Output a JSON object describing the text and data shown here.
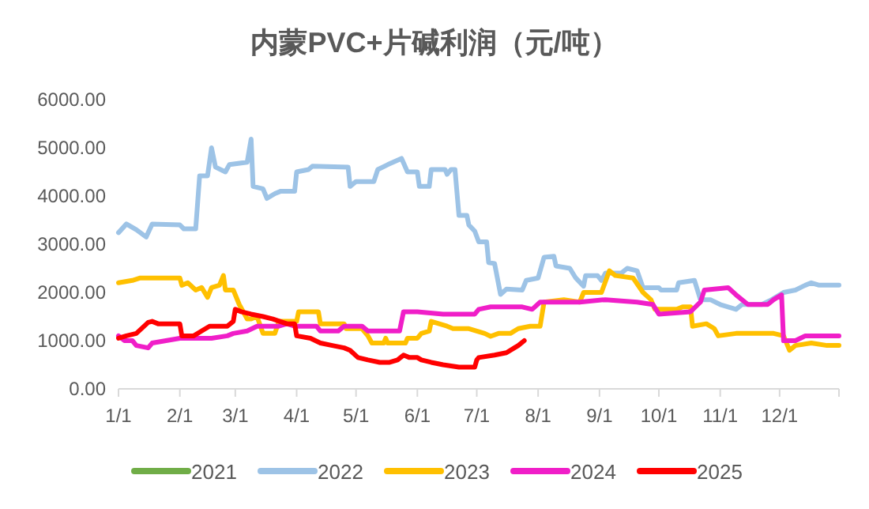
{
  "chart_data": {
    "type": "line",
    "title": "内蒙PVC+片碱利润（元/吨）",
    "xlim": [
      "--01-01",
      "--12-31"
    ],
    "xticks": [
      {
        "value": "--01-01",
        "label": "1/1"
      },
      {
        "value": "--02-01",
        "label": "2/1"
      },
      {
        "value": "--03-01",
        "label": "3/1"
      },
      {
        "value": "--04-01",
        "label": "4/1"
      },
      {
        "value": "--05-01",
        "label": "5/1"
      },
      {
        "value": "--06-01",
        "label": "6/1"
      },
      {
        "value": "--07-01",
        "label": "7/1"
      },
      {
        "value": "--08-01",
        "label": "8/1"
      },
      {
        "value": "--09-01",
        "label": "9/1"
      },
      {
        "value": "--10-01",
        "label": "10/1"
      },
      {
        "value": "--11-01",
        "label": "11/1"
      },
      {
        "value": "--12-01",
        "label": "12/1"
      }
    ],
    "ylim": [
      0,
      6000
    ],
    "yticks": [
      {
        "value": 0,
        "label": "0.00"
      },
      {
        "value": 1000,
        "label": "1000.00"
      },
      {
        "value": 2000,
        "label": "2000.00"
      },
      {
        "value": 3000,
        "label": "3000.00"
      },
      {
        "value": 4000,
        "label": "4000.00"
      },
      {
        "value": 5000,
        "label": "5000.00"
      },
      {
        "value": 6000,
        "label": "6000.00"
      }
    ],
    "grid": false,
    "legend": "bottom",
    "marker": "none",
    "line_style": "solid",
    "series": [
      {
        "name": "2021",
        "color": "#70ad47"
      },
      {
        "name": "2022",
        "color": "#9dc3e6",
        "x": [
          "--01-01",
          "--01-05",
          "--01-10",
          "--01-15",
          "--01-18",
          "--02-01",
          "--02-03",
          "--02-09",
          "--02-11",
          "--02-15",
          "--02-17",
          "--02-19",
          "--02-24",
          "--02-26",
          "--03-07",
          "--03-09",
          "--03-10",
          "--03-15",
          "--03-17",
          "--03-21",
          "--03-24",
          "--03-31",
          "--04-01",
          "--04-07",
          "--04-09",
          "--04-27",
          "--04-28",
          "--05-01",
          "--05-10",
          "--05-12",
          "--05-17",
          "--05-24",
          "--05-27",
          "--06-01",
          "--06-02",
          "--06-07",
          "--06-08",
          "--06-15",
          "--06-16",
          "--06-18",
          "--06-20",
          "--06-22",
          "--06-26",
          "--06-27",
          "--06-30",
          "--07-02",
          "--07-06",
          "--07-07",
          "--07-10",
          "--07-13",
          "--07-16",
          "--07-24",
          "--07-26",
          "--08-01",
          "--08-04",
          "--08-09",
          "--08-10",
          "--08-17",
          "--08-20",
          "--08-24",
          "--08-25",
          "--08-31",
          "--09-02",
          "--09-04",
          "--09-12",
          "--09-15",
          "--09-20",
          "--09-23",
          "--10-01",
          "--10-02",
          "--10-10",
          "--10-11",
          "--10-19",
          "--10-22",
          "--10-27",
          "--11-01",
          "--11-05",
          "--11-09",
          "--11-12",
          "--11-22",
          "--11-27",
          "--12-03",
          "--12-09",
          "--12-14",
          "--12-17",
          "--12-21",
          "--12-31"
        ],
        "values": [
          3240,
          3420,
          3300,
          3150,
          3420,
          3400,
          3320,
          3320,
          4420,
          4420,
          5000,
          4600,
          4500,
          4650,
          4700,
          5180,
          4200,
          4150,
          3950,
          4050,
          4100,
          4100,
          4500,
          4550,
          4620,
          4600,
          4200,
          4300,
          4300,
          4550,
          4650,
          4780,
          4500,
          4500,
          4200,
          4200,
          4550,
          4550,
          4450,
          4550,
          4550,
          3600,
          3600,
          3400,
          3270,
          3050,
          3050,
          2620,
          2600,
          1960,
          2070,
          2050,
          2250,
          2300,
          2730,
          2750,
          2550,
          2500,
          2300,
          2130,
          2350,
          2350,
          2250,
          2400,
          2400,
          2500,
          2450,
          2100,
          2100,
          2050,
          2050,
          2200,
          2250,
          1850,
          1850,
          1750,
          1700,
          1650,
          1750,
          1750,
          1850,
          2000,
          2050,
          2150,
          2200,
          2150,
          2150
        ]
      },
      {
        "name": "2023",
        "color": "#ffc000",
        "x": [
          "--01-01",
          "--01-08",
          "--01-12",
          "--02-01",
          "--02-02",
          "--02-05",
          "--02-09",
          "--02-12",
          "--02-15",
          "--02-17",
          "--02-21",
          "--02-23",
          "--02-24",
          "--02-28",
          "--03-03",
          "--03-07",
          "--03-09",
          "--03-12",
          "--03-15",
          "--03-21",
          "--03-23",
          "--04-01",
          "--04-02",
          "--04-12",
          "--04-13",
          "--04-25",
          "--04-26",
          "--05-04",
          "--05-07",
          "--05-09",
          "--05-15",
          "--05-16",
          "--05-17",
          "--05-26",
          "--05-27",
          "--06-01",
          "--06-03",
          "--06-07",
          "--06-08",
          "--06-16",
          "--06-19",
          "--06-27",
          "--07-01",
          "--07-05",
          "--07-08",
          "--07-12",
          "--07-18",
          "--07-22",
          "--07-28",
          "--08-02",
          "--08-04",
          "--08-14",
          "--08-22",
          "--08-24",
          "--09-02",
          "--09-06",
          "--09-09",
          "--09-18",
          "--09-23",
          "--09-27",
          "--09-29",
          "--10-10",
          "--10-13",
          "--10-17",
          "--10-18",
          "--10-25",
          "--10-29",
          "--10-31",
          "--11-09",
          "--11-28",
          "--12-03",
          "--12-06",
          "--12-09",
          "--12-17",
          "--12-25",
          "--12-31"
        ],
        "values": [
          2200,
          2250,
          2300,
          2300,
          2150,
          2200,
          2050,
          2100,
          1900,
          2100,
          2150,
          2350,
          2050,
          2050,
          1750,
          1450,
          1450,
          1500,
          1150,
          1150,
          1400,
          1400,
          1600,
          1600,
          1350,
          1350,
          1250,
          1250,
          1100,
          950,
          950,
          1050,
          950,
          950,
          1050,
          1050,
          1150,
          1200,
          1400,
          1300,
          1250,
          1250,
          1200,
          1150,
          1090,
          1150,
          1150,
          1250,
          1300,
          1300,
          1800,
          1850,
          1800,
          2000,
          2000,
          2450,
          2350,
          2300,
          2000,
          1850,
          1650,
          1650,
          1700,
          1700,
          1300,
          1350,
          1250,
          1100,
          1150,
          1150,
          1100,
          800,
          900,
          950,
          900,
          900
        ]
      },
      {
        "name": "2024",
        "color": "#f01ec8",
        "x": [
          "--01-01",
          "--01-04",
          "--01-08",
          "--01-10",
          "--01-16",
          "--01-18",
          "--02-01",
          "--02-17",
          "--02-25",
          "--02-28",
          "--03-07",
          "--03-12",
          "--03-23",
          "--03-27",
          "--03-31",
          "--04-11",
          "--04-13",
          "--04-22",
          "--04-25",
          "--05-04",
          "--05-07",
          "--05-23",
          "--05-25",
          "--06-01",
          "--06-14",
          "--06-30",
          "--07-02",
          "--07-08",
          "--07-24",
          "--07-29",
          "--08-02",
          "--08-22",
          "--09-04",
          "--09-20",
          "--09-28",
          "--10-01",
          "--10-17",
          "--10-22",
          "--10-24",
          "--11-05",
          "--11-09",
          "--11-15",
          "--11-25",
          "--11-28",
          "--12-02",
          "--12-03",
          "--12-09",
          "--12-14",
          "--12-31"
        ],
        "values": [
          1100,
          1000,
          1000,
          900,
          850,
          950,
          1050,
          1050,
          1100,
          1150,
          1200,
          1300,
          1300,
          1350,
          1300,
          1300,
          1200,
          1200,
          1300,
          1300,
          1200,
          1200,
          1600,
          1600,
          1550,
          1550,
          1650,
          1700,
          1700,
          1650,
          1800,
          1800,
          1850,
          1800,
          1750,
          1550,
          1600,
          1800,
          2050,
          2100,
          1950,
          1750,
          1750,
          1850,
          1950,
          1000,
          1000,
          1100,
          1100
        ]
      },
      {
        "name": "2025",
        "color": "#ff0000",
        "x": [
          "--01-01",
          "--01-05",
          "--01-10",
          "--01-16",
          "--01-18",
          "--01-21",
          "--02-01",
          "--02-02",
          "--02-08",
          "--02-12",
          "--02-16",
          "--02-25",
          "--02-28",
          "--03-01",
          "--03-04",
          "--03-09",
          "--03-15",
          "--03-20",
          "--03-27",
          "--03-31",
          "--04-01",
          "--04-08",
          "--04-13",
          "--04-19",
          "--04-25",
          "--04-28",
          "--05-02",
          "--05-07",
          "--05-13",
          "--05-18",
          "--05-22",
          "--05-25",
          "--05-28",
          "--06-01",
          "--06-03",
          "--06-08",
          "--06-14",
          "--06-22",
          "--06-30",
          "--07-01",
          "--07-02",
          "--07-10",
          "--07-16",
          "--07-20",
          "--07-22",
          "--07-25"
        ],
        "values": [
          1050,
          1100,
          1150,
          1380,
          1400,
          1350,
          1350,
          1100,
          1100,
          1200,
          1300,
          1300,
          1400,
          1650,
          1600,
          1550,
          1500,
          1450,
          1350,
          1350,
          1100,
          1050,
          950,
          900,
          850,
          800,
          650,
          600,
          550,
          550,
          600,
          700,
          650,
          650,
          600,
          550,
          500,
          450,
          450,
          600,
          650,
          700,
          750,
          850,
          900,
          1000
        ]
      }
    ]
  }
}
